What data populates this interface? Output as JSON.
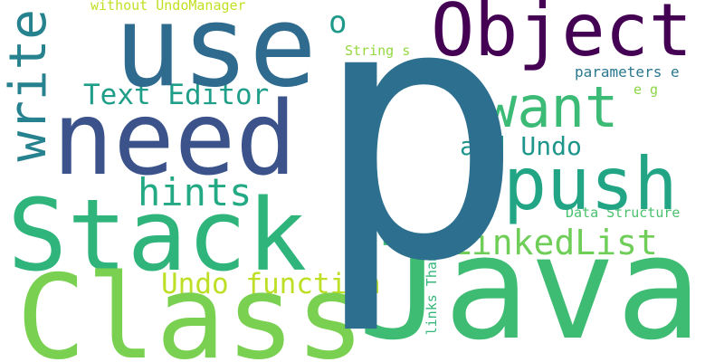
{
  "word_cloud": {
    "background": "#ffffff",
    "words": {
      "p": {
        "text": "p",
        "color": "#2d6f8e"
      },
      "java": {
        "text": "Java",
        "color": "#3fbc73"
      },
      "class": {
        "text": "Class",
        "color": "#7ad151"
      },
      "stack": {
        "text": "Stack",
        "color": "#2fb47c"
      },
      "need": {
        "text": "need",
        "color": "#3b528b"
      },
      "use": {
        "text": "use",
        "color": "#2f6b8e"
      },
      "object": {
        "text": "Object",
        "color": "#440154"
      },
      "push": {
        "text": "push",
        "color": "#21a585"
      },
      "want": {
        "text": "want",
        "color": "#3bbb75"
      },
      "write": {
        "text": "write",
        "color": "#26828e"
      },
      "o": {
        "text": "o",
        "color": "#1f9a8a"
      },
      "text_editor": {
        "text": "Text Editor",
        "color": "#1f9e89"
      },
      "add_undo": {
        "text": "add Undo",
        "color": "#1f968b"
      },
      "hints": {
        "text": "hints",
        "color": "#23a983"
      },
      "linkedlist": {
        "text": "LinkedList",
        "color": "#6ece58"
      },
      "undo_function": {
        "text": "Undo function",
        "color": "#bddf26"
      },
      "without_undomanager": {
        "text": "without UndoManager",
        "color": "#c2df23"
      },
      "string_s": {
        "text": "String s",
        "color": "#95d840"
      },
      "parameters_e": {
        "text": "parameters e",
        "color": "#2a788e"
      },
      "e_g": {
        "text": "e g",
        "color": "#8bd646"
      },
      "data_structure": {
        "text": "Data Structure",
        "color": "#4ac16d"
      },
      "links_thanks": {
        "text": "links Thanks",
        "color": "#35b779"
      }
    }
  }
}
